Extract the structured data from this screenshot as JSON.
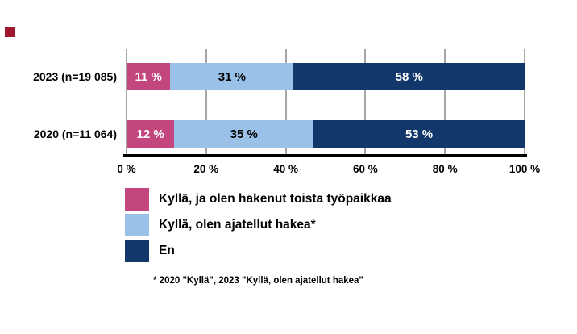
{
  "logo": {
    "color": "#A01931"
  },
  "chart_data": {
    "type": "bar",
    "orientation": "horizontal",
    "stacked": true,
    "title": "",
    "categories": [
      "2023 (n=19 085)",
      "2020 (n=11 064)"
    ],
    "series": [
      {
        "name": "Kyllä, ja olen hakenut toista työpaikkaa",
        "color": "#C3467E",
        "text_color": "#FFFFFF",
        "values": [
          11,
          12
        ]
      },
      {
        "name": "Kyllä, olen ajatellut hakea*",
        "color": "#9AC2E9",
        "text_color": "#000000",
        "values": [
          31,
          35
        ]
      },
      {
        "name": "En",
        "color": "#11376B",
        "text_color": "#FFFFFF",
        "values": [
          58,
          53
        ]
      }
    ],
    "value_suffix": " %",
    "x_axis": {
      "min": 0,
      "max": 100,
      "ticks": [
        "0 %",
        "20 %",
        "40 %",
        "60 %",
        "80 %",
        "100 %"
      ]
    },
    "grid": true,
    "gridline_color": "#A6A6A6",
    "axis_color": "#000000",
    "legend_position": "bottom-left",
    "footnote": "* 2020 \"Kyllä\", 2023 \"Kyllä, olen ajatellut hakea\""
  }
}
